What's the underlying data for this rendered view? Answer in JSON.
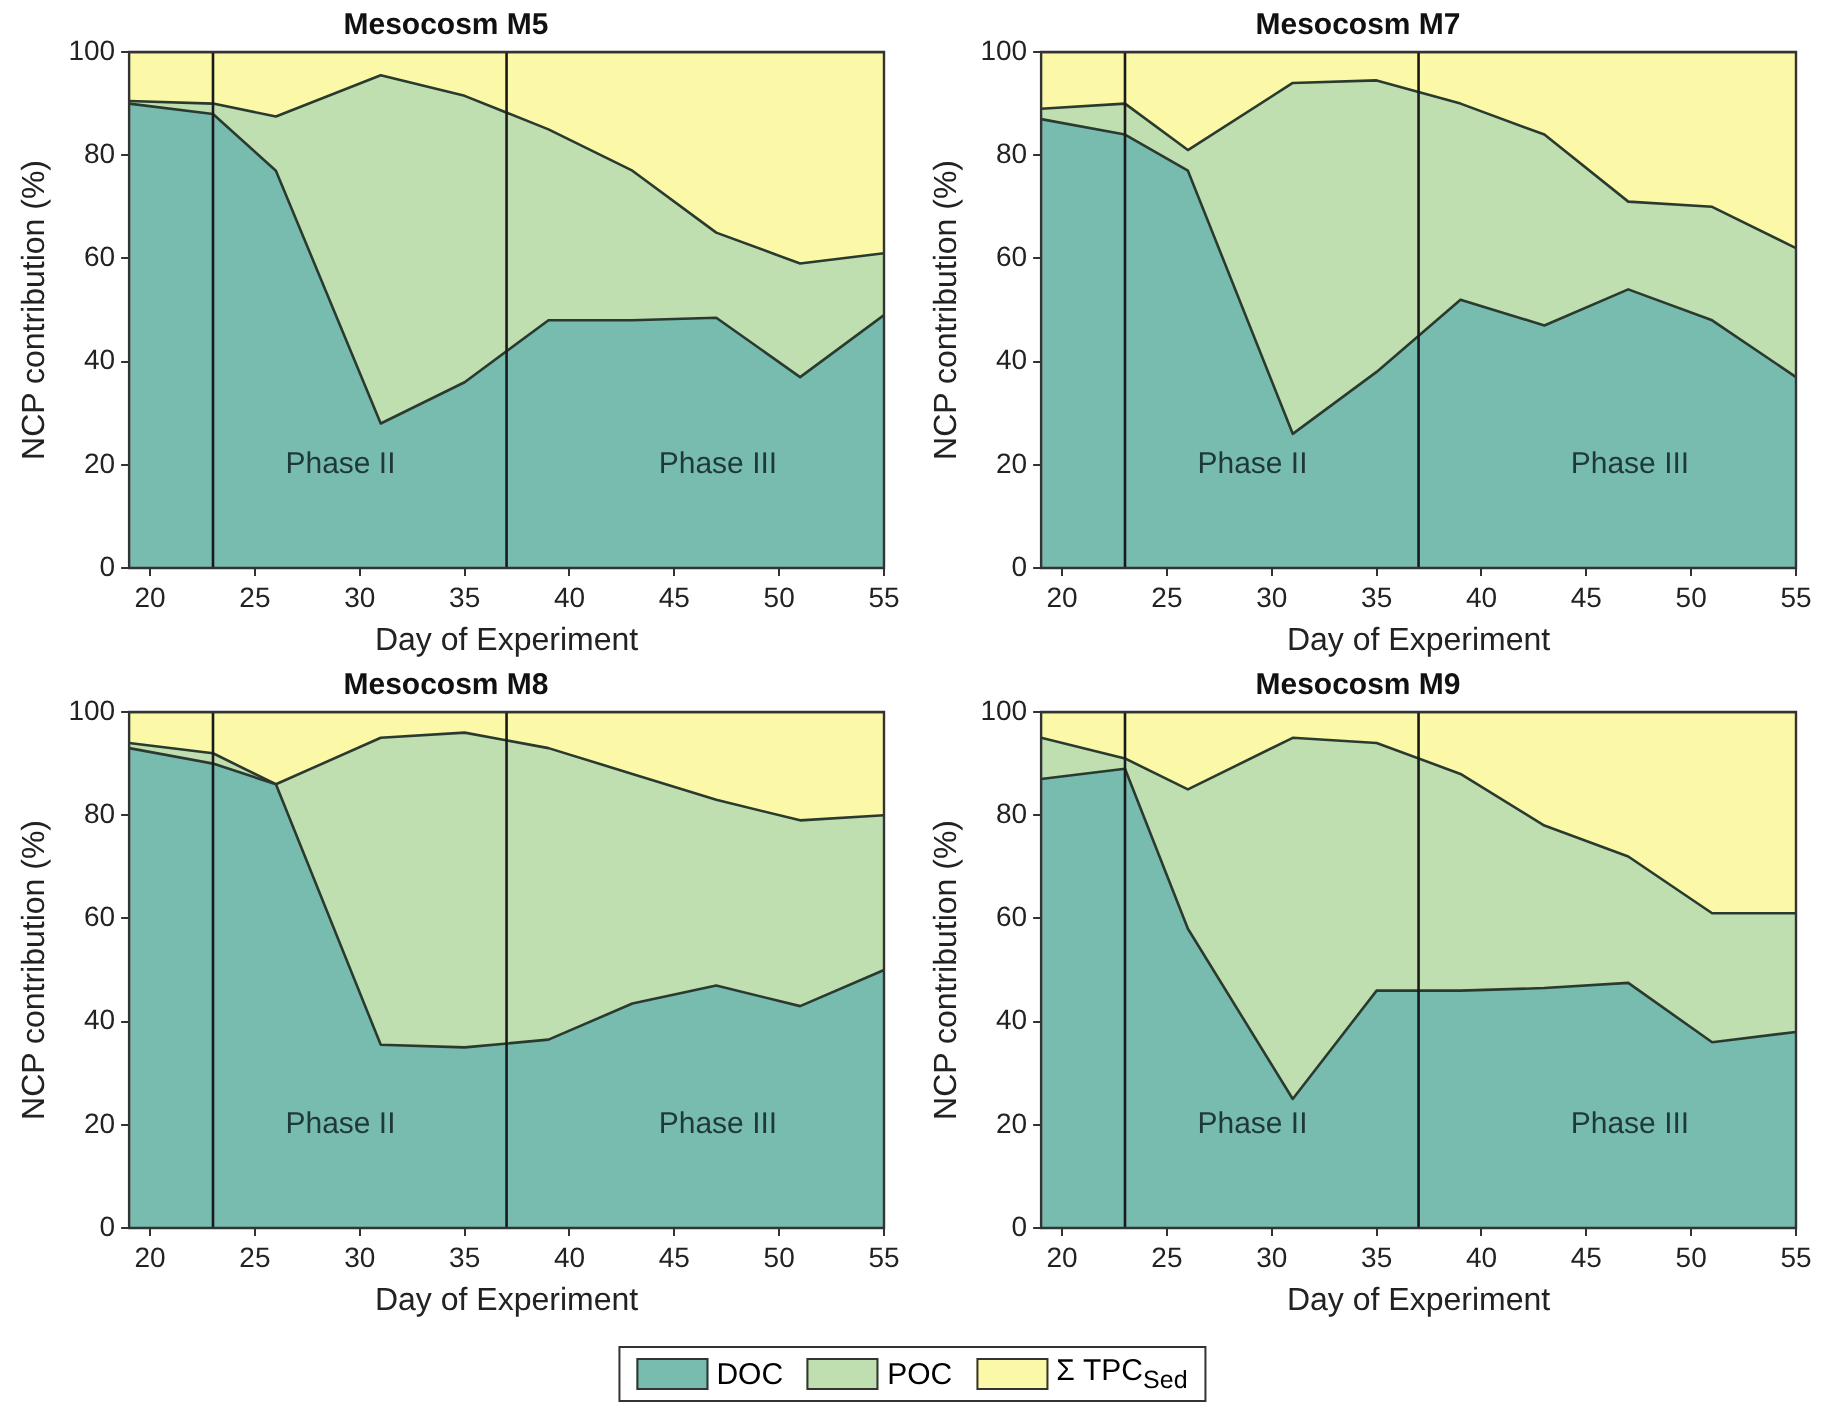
{
  "chart_data": [
    {
      "type": "area",
      "title": "Mesocosm M5",
      "xlabel": "Day of Experiment",
      "ylabel": "NCP contribution (%)",
      "stacked": true,
      "x": [
        19,
        23,
        26,
        31,
        35,
        39,
        43,
        47,
        51,
        55
      ],
      "xlim": [
        19,
        55
      ],
      "xticks": [
        20,
        25,
        30,
        35,
        40,
        45,
        50,
        55
      ],
      "ylim": [
        0,
        100
      ],
      "yticks": [
        0,
        20,
        40,
        60,
        80,
        100
      ],
      "series": [
        {
          "color": "#78bcb0",
          "values": [
            90,
            88,
            77,
            28,
            36,
            48,
            48,
            48.5,
            37,
            49
          ]
        },
        {
          "color": "#bfdfb1",
          "values": [
            0.5,
            2,
            10.5,
            67.5,
            55.5,
            37,
            29,
            16.5,
            22,
            12
          ]
        },
        {
          "color": "#fbf9a8",
          "values": [
            9.5,
            10,
            12.5,
            4.5,
            8.5,
            15,
            23,
            35,
            41,
            39
          ]
        }
      ],
      "ref_lines": [
        {
          "axis": "x",
          "value": 23
        },
        {
          "axis": "x",
          "value": 37
        }
      ],
      "annotations": [
        "Phase II",
        "Phase III"
      ]
    },
    {
      "type": "area",
      "title": "Mesocosm M7",
      "xlabel": "Day of Experiment",
      "ylabel": "NCP contribution (%)",
      "stacked": true,
      "x": [
        19,
        23,
        26,
        31,
        35,
        39,
        43,
        47,
        51,
        55
      ],
      "xlim": [
        19,
        55
      ],
      "xticks": [
        20,
        25,
        30,
        35,
        40,
        45,
        50,
        55
      ],
      "ylim": [
        0,
        100
      ],
      "yticks": [
        0,
        20,
        40,
        60,
        80,
        100
      ],
      "series": [
        {
          "color": "#78bcb0",
          "values": [
            87,
            84,
            77,
            26,
            38,
            52,
            47,
            54,
            48,
            37
          ]
        },
        {
          "color": "#bfdfb1",
          "values": [
            2,
            6,
            4,
            68,
            56.5,
            38,
            37,
            17,
            22,
            25
          ]
        },
        {
          "color": "#fbf9a8",
          "values": [
            11,
            10,
            19,
            6,
            5.5,
            10,
            16,
            29,
            30,
            38
          ]
        }
      ],
      "ref_lines": [
        {
          "axis": "x",
          "value": 23
        },
        {
          "axis": "x",
          "value": 37
        }
      ],
      "annotations": [
        "Phase II",
        "Phase III"
      ]
    },
    {
      "type": "area",
      "title": "Mesocosm M8",
      "xlabel": "Day of Experiment",
      "ylabel": "NCP contribution (%)",
      "stacked": true,
      "x": [
        19,
        23,
        26,
        31,
        35,
        39,
        43,
        47,
        51,
        55
      ],
      "xlim": [
        19,
        55
      ],
      "xticks": [
        20,
        25,
        30,
        35,
        40,
        45,
        50,
        55
      ],
      "ylim": [
        0,
        100
      ],
      "yticks": [
        0,
        20,
        40,
        60,
        80,
        100
      ],
      "series": [
        {
          "color": "#78bcb0",
          "values": [
            93,
            90,
            86,
            35.5,
            35,
            36.5,
            43.5,
            47,
            43,
            50
          ]
        },
        {
          "color": "#bfdfb1",
          "values": [
            1,
            2,
            0,
            59.5,
            61,
            56.5,
            44.5,
            36,
            36,
            30
          ]
        },
        {
          "color": "#fbf9a8",
          "values": [
            6,
            8,
            14,
            5,
            4,
            7,
            12,
            17,
            21,
            20
          ]
        }
      ],
      "ref_lines": [
        {
          "axis": "x",
          "value": 23
        },
        {
          "axis": "x",
          "value": 37
        }
      ],
      "annotations": [
        "Phase II",
        "Phase III"
      ]
    },
    {
      "type": "area",
      "title": "Mesocosm M9",
      "xlabel": "Day of Experiment",
      "ylabel": "NCP contribution (%)",
      "stacked": true,
      "x": [
        19,
        23,
        26,
        31,
        35,
        39,
        43,
        47,
        51,
        55
      ],
      "xlim": [
        19,
        55
      ],
      "xticks": [
        20,
        25,
        30,
        35,
        40,
        45,
        50,
        55
      ],
      "ylim": [
        0,
        100
      ],
      "yticks": [
        0,
        20,
        40,
        60,
        80,
        100
      ],
      "legend": "bottom",
      "series": [
        {
          "name": "DOC",
          "color": "#78bcb0",
          "values": [
            87,
            89,
            58,
            25,
            46,
            46,
            46.5,
            47.5,
            36,
            38
          ]
        },
        {
          "name": "POC",
          "color": "#bfdfb1",
          "values": [
            8,
            2,
            27,
            70,
            48,
            42,
            31.5,
            24.5,
            25,
            23
          ]
        },
        {
          "name": "Σ TPC$_{Sed}$",
          "color": "#fbf9a8",
          "values": [
            5,
            9,
            15,
            5,
            6,
            12,
            22,
            28,
            39,
            39
          ]
        }
      ],
      "ref_lines": [
        {
          "axis": "x",
          "value": 23
        },
        {
          "axis": "x",
          "value": 37
        }
      ],
      "annotations": [
        "Phase II",
        "Phase III"
      ]
    }
  ]
}
